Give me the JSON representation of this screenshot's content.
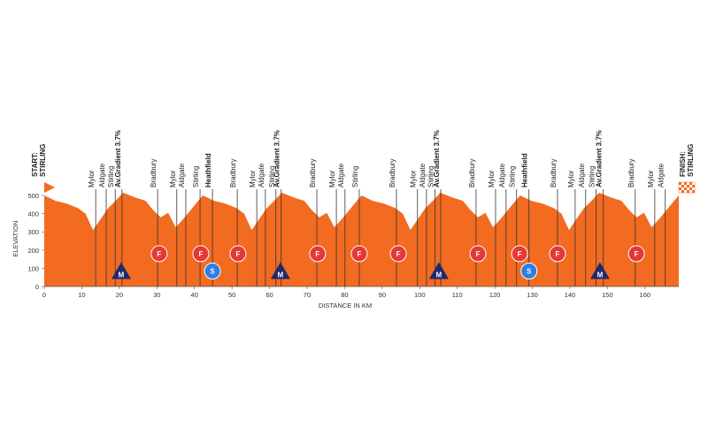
{
  "chart_data": {
    "type": "area",
    "start_label": [
      "START:",
      "STIRLING"
    ],
    "finish_label": [
      "FINISH:",
      "STIRLING"
    ],
    "ylabel": "ELEVATION",
    "xlabel": "DISTANCE IN KM",
    "color": "#f26b21",
    "xlim": [
      0,
      169
    ],
    "ylim": [
      0,
      500
    ],
    "xticks": [
      0,
      10,
      20,
      30,
      40,
      50,
      60,
      70,
      80,
      90,
      100,
      110,
      120,
      130,
      140,
      150,
      160
    ],
    "yticks": [
      0,
      100,
      200,
      300,
      400,
      500
    ],
    "x": [
      0,
      3,
      6,
      9,
      11,
      13,
      15,
      17,
      19,
      21,
      24,
      27,
      29,
      31,
      33,
      35,
      37,
      39,
      41,
      42.25,
      45.25,
      48.25,
      51.25,
      53.25,
      55.25,
      57.25,
      59.25,
      61.25,
      63.25,
      66.25,
      69.25,
      71.25,
      73.25,
      75.25,
      77.25,
      79.25,
      81.25,
      83.25,
      84.5,
      87.5,
      90.5,
      93.5,
      95.5,
      97.5,
      99.5,
      101.5,
      103.5,
      105.5,
      108.5,
      111.5,
      113.5,
      115.5,
      117.5,
      119.5,
      121.5,
      123.5,
      125.5,
      126.75,
      129.75,
      132.75,
      135.75,
      137.75,
      139.75,
      141.75,
      143.75,
      145.75,
      147.75,
      150.75,
      153.75,
      155.75,
      157.75,
      159.75,
      161.75,
      163.75,
      165.75,
      167.75,
      169
    ],
    "values": [
      500,
      470,
      455,
      430,
      400,
      310,
      370,
      430,
      470,
      515,
      490,
      470,
      420,
      380,
      405,
      325,
      370,
      420,
      470,
      500,
      470,
      455,
      430,
      400,
      310,
      370,
      430,
      470,
      515,
      490,
      470,
      420,
      380,
      405,
      325,
      370,
      420,
      470,
      500,
      470,
      455,
      430,
      400,
      310,
      370,
      430,
      470,
      515,
      490,
      470,
      420,
      380,
      405,
      325,
      370,
      420,
      470,
      500,
      470,
      455,
      430,
      400,
      310,
      370,
      430,
      470,
      515,
      490,
      470,
      420,
      380,
      405,
      325,
      370,
      420,
      470,
      500
    ],
    "locations": [
      {
        "label": "Mylor",
        "x": 13.7
      },
      {
        "label": "Aldgate",
        "x": 16.5
      },
      {
        "label": "Stirling",
        "x": 18.9
      },
      {
        "label": "Av.Gradient 3.7%",
        "x": 20.7
      },
      {
        "label": "Bradbury",
        "x": 30.2
      },
      {
        "label": "Mylor",
        "x": 35.3
      },
      {
        "label": "Aldgate",
        "x": 37.7
      },
      {
        "label": "Stirling",
        "x": 41.5
      },
      {
        "label": "Heathfield",
        "x": 44.8
      },
      {
        "label": "Bradbury",
        "x": 51.4
      },
      {
        "label": "Mylor",
        "x": 56.6
      },
      {
        "label": "Aldgate",
        "x": 58.9
      },
      {
        "label": "Stirling",
        "x": 61.7
      },
      {
        "label": "Av.Gradient 3.7%",
        "x": 63.1
      },
      {
        "label": "Bradbury",
        "x": 72.6
      },
      {
        "label": "Mylor",
        "x": 77.8
      },
      {
        "label": "Aldgate",
        "x": 80.1
      },
      {
        "label": "Stirling",
        "x": 83.9
      },
      {
        "label": "Bradbury",
        "x": 93.8
      },
      {
        "label": "Mylor",
        "x": 99.4
      },
      {
        "label": "Aldgate",
        "x": 101.8
      },
      {
        "label": "Stirling",
        "x": 104.1
      },
      {
        "label": "Av.Gradient 3.7%",
        "x": 105.6
      },
      {
        "label": "Bradbury",
        "x": 115
      },
      {
        "label": "Mylor",
        "x": 120.2
      },
      {
        "label": "Aldgate",
        "x": 123
      },
      {
        "label": "Stirling",
        "x": 125.8
      },
      {
        "label": "Heathfield",
        "x": 129.1
      },
      {
        "label": "Bradbury",
        "x": 136.7
      },
      {
        "label": "Mylor",
        "x": 141.4
      },
      {
        "label": "Aldgate",
        "x": 144.2
      },
      {
        "label": "Stirling",
        "x": 147
      },
      {
        "label": "Av.Gradient 3.7%",
        "x": 148.9
      },
      {
        "label": "Bradbury",
        "x": 157.4
      },
      {
        "label": "Mylor",
        "x": 162.6
      },
      {
        "label": "Aldgate",
        "x": 165.4
      }
    ],
    "markers": [
      {
        "label": "M",
        "x": 20.5,
        "elevation": 80,
        "shape": "triangle",
        "color": "#1f2a6b"
      },
      {
        "label": "F",
        "x": 30.6,
        "elevation": 180,
        "shape": "circle",
        "color": "#e53935"
      },
      {
        "label": "F",
        "x": 41.7,
        "elevation": 180,
        "shape": "circle",
        "color": "#e53935"
      },
      {
        "label": "S",
        "x": 44.8,
        "elevation": 85,
        "shape": "circle",
        "color": "#2f7de1"
      },
      {
        "label": "F",
        "x": 51.6,
        "elevation": 180,
        "shape": "circle",
        "color": "#e53935"
      },
      {
        "label": "M",
        "x": 62.9,
        "elevation": 80,
        "shape": "triangle",
        "color": "#1f2a6b"
      },
      {
        "label": "F",
        "x": 72.8,
        "elevation": 180,
        "shape": "circle",
        "color": "#e53935"
      },
      {
        "label": "F",
        "x": 83.9,
        "elevation": 180,
        "shape": "circle",
        "color": "#e53935"
      },
      {
        "label": "F",
        "x": 94.3,
        "elevation": 180,
        "shape": "circle",
        "color": "#e53935"
      },
      {
        "label": "M",
        "x": 105.1,
        "elevation": 80,
        "shape": "triangle",
        "color": "#1f2a6b"
      },
      {
        "label": "F",
        "x": 115.5,
        "elevation": 180,
        "shape": "circle",
        "color": "#e53935"
      },
      {
        "label": "F",
        "x": 126.6,
        "elevation": 180,
        "shape": "circle",
        "color": "#e53935"
      },
      {
        "label": "S",
        "x": 129.1,
        "elevation": 85,
        "shape": "circle",
        "color": "#2f7de1"
      },
      {
        "label": "F",
        "x": 136.7,
        "elevation": 180,
        "shape": "circle",
        "color": "#e53935"
      },
      {
        "label": "M",
        "x": 148.0,
        "elevation": 80,
        "shape": "triangle",
        "color": "#1f2a6b"
      },
      {
        "label": "F",
        "x": 157.7,
        "elevation": 180,
        "shape": "circle",
        "color": "#e53935"
      }
    ]
  }
}
